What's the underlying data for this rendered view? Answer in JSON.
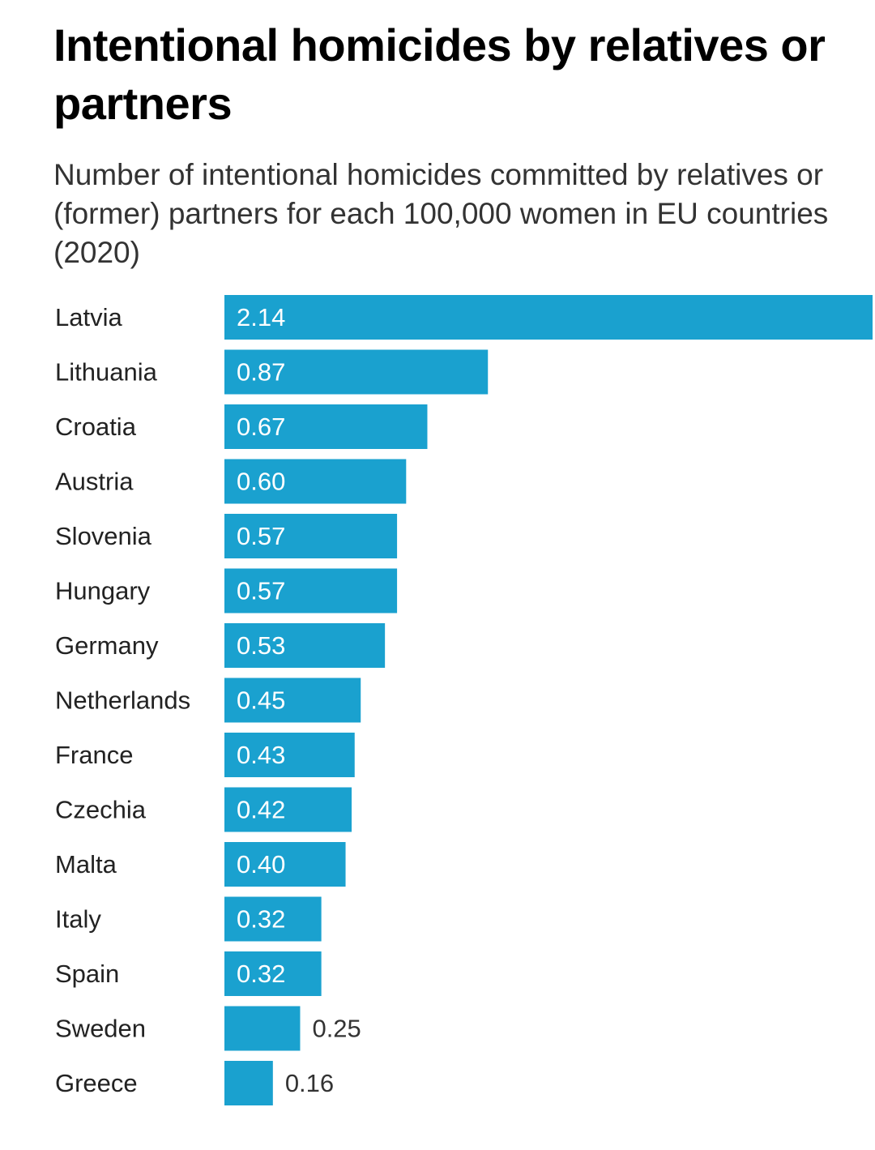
{
  "chart_data": {
    "type": "bar",
    "orientation": "horizontal",
    "title": "Intentional homicides by relatives or partners",
    "subtitle": "Number of intentional homicides committed by relatives or (former) partners for each 100,000 women in EU countries (2020)",
    "categories": [
      "Latvia",
      "Lithuania",
      "Croatia",
      "Austria",
      "Slovenia",
      "Hungary",
      "Germany",
      "Netherlands",
      "France",
      "Czechia",
      "Malta",
      "Italy",
      "Spain",
      "Sweden",
      "Greece"
    ],
    "values": [
      2.14,
      0.87,
      0.67,
      0.6,
      0.57,
      0.57,
      0.53,
      0.45,
      0.43,
      0.42,
      0.4,
      0.32,
      0.32,
      0.25,
      0.16
    ],
    "value_labels": [
      "2.14",
      "0.87",
      "0.67",
      "0.60",
      "0.57",
      "0.57",
      "0.53",
      "0.45",
      "0.43",
      "0.42",
      "0.40",
      "0.32",
      "0.32",
      "0.25",
      "0.16"
    ],
    "xlim": [
      0,
      2.14
    ],
    "grid": false,
    "legend": "none",
    "bar_color": "#1aa1cf",
    "label_inside_color": "#ffffff",
    "label_outside_color": "#333333"
  }
}
